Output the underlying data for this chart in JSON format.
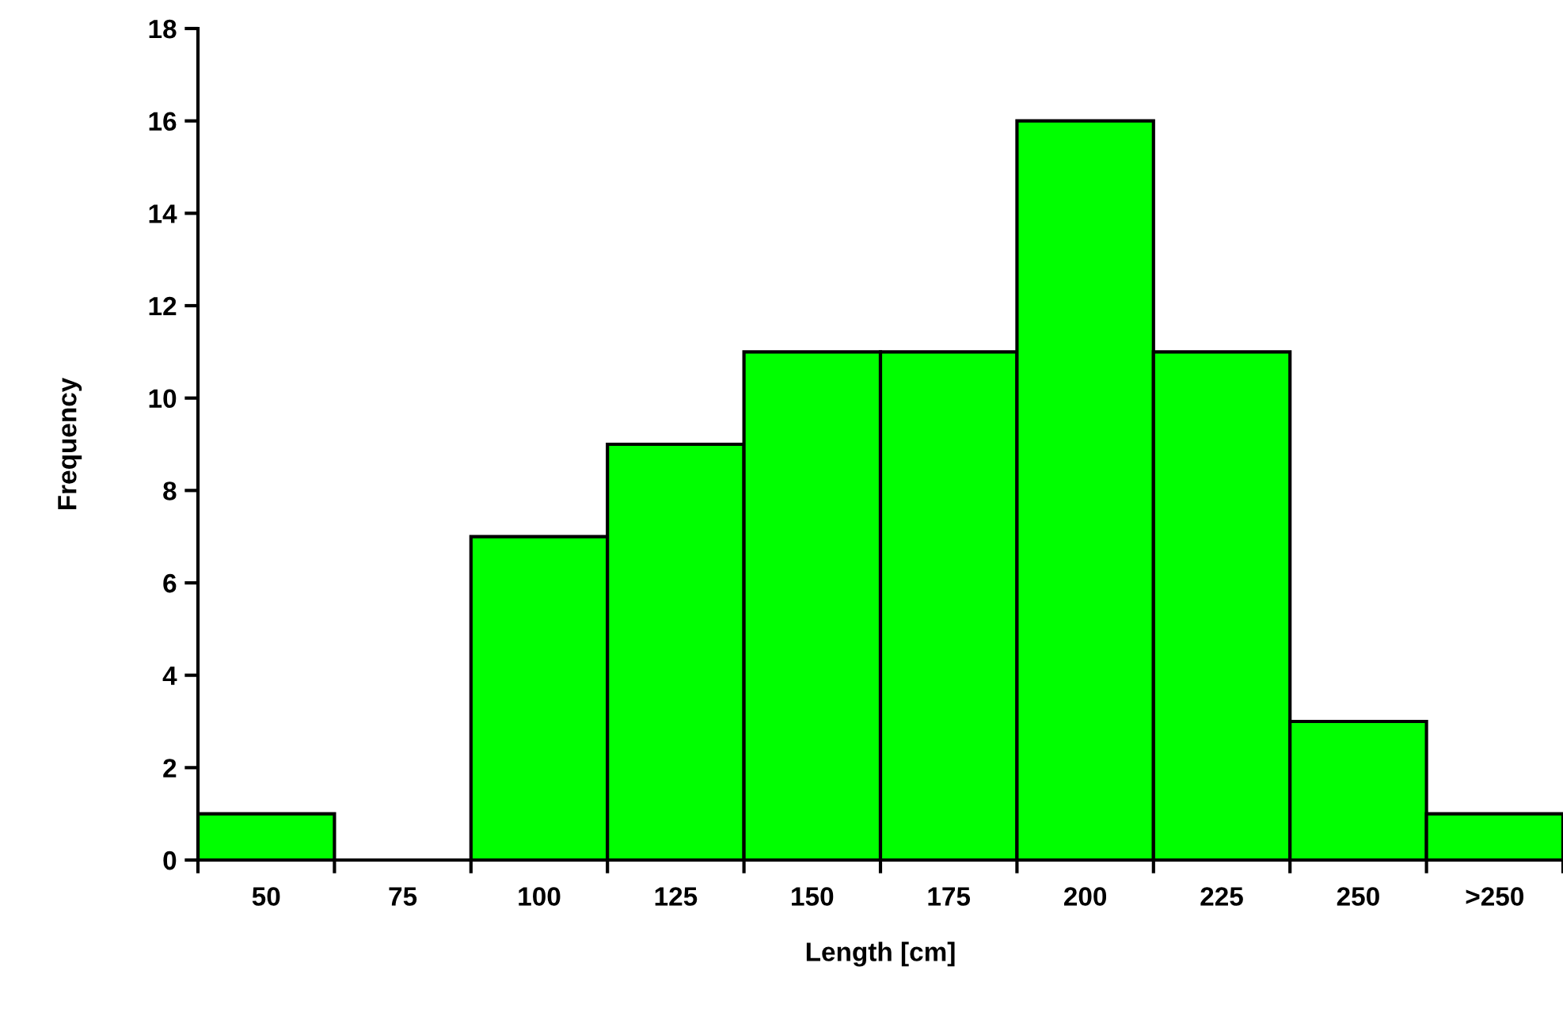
{
  "chart_data": {
    "type": "bar",
    "xlabel": "Length [cm]",
    "ylabel": "Frequency",
    "categories": [
      "50",
      "75",
      "100",
      "125",
      "150",
      "175",
      "200",
      "225",
      "250",
      ">250"
    ],
    "values": [
      1,
      0,
      7,
      9,
      11,
      11,
      16,
      11,
      3,
      1
    ],
    "color": "#00ff00",
    "ylim": [
      0,
      18
    ],
    "yticks": [
      0,
      2,
      4,
      6,
      8,
      10,
      12,
      14,
      16,
      18
    ],
    "grid": false
  }
}
